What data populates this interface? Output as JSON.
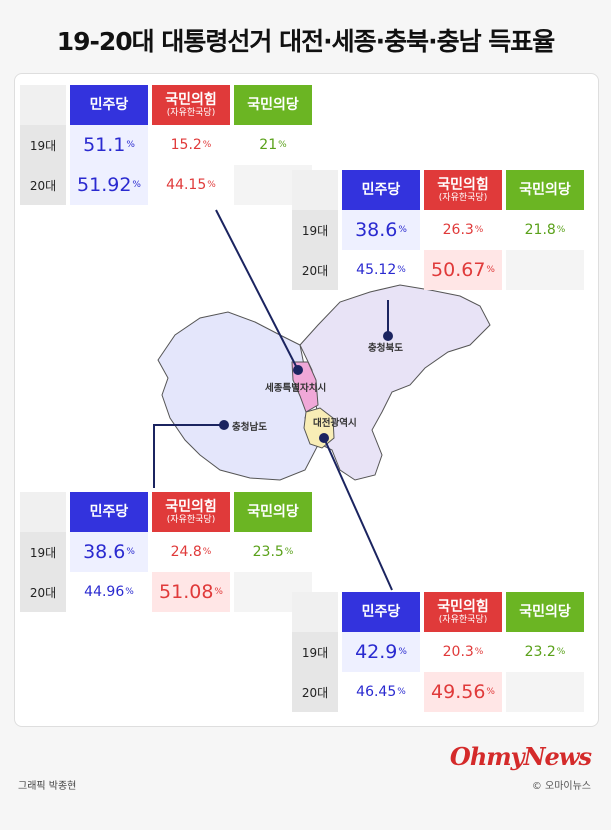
{
  "title": "19-20대 대통령선거 대전·세종·충북·충남 득표율",
  "party_headers": {
    "dem": "민주당",
    "ppp": "국민의힘",
    "ppp_sub": "(자유한국당)",
    "grn": "국민의당"
  },
  "regions": {
    "chungbuk": "충청북도",
    "sejong": "세종특별자치시",
    "chungnam": "충청남도",
    "daejeon": "대전광역시"
  },
  "colors": {
    "dem": "#3333dd",
    "ppp": "#e03a3a",
    "grn": "#6bb523"
  },
  "chart_data": {
    "type": "table",
    "columns": [
      "민주당",
      "국민의힘(자유한국당)",
      "국민의당"
    ],
    "rows": [
      "19대",
      "20대"
    ],
    "unit": "%",
    "tables": [
      {
        "region": "세종특별자치시",
        "values": {
          "19대": [
            51.1,
            15.2,
            21
          ],
          "20대": [
            51.92,
            44.15,
            null
          ]
        },
        "display": {
          "19대": [
            "51.1",
            "15.2",
            "21"
          ],
          "20대": [
            "51.92",
            "44.15",
            ""
          ]
        }
      },
      {
        "region": "충청북도",
        "values": {
          "19대": [
            38.6,
            26.3,
            21.8
          ],
          "20대": [
            45.12,
            50.67,
            null
          ]
        },
        "display": {
          "19대": [
            "38.6",
            "26.3",
            "21.8"
          ],
          "20대": [
            "45.12",
            "50.67",
            ""
          ]
        }
      },
      {
        "region": "충청남도",
        "values": {
          "19대": [
            38.6,
            24.8,
            23.5
          ],
          "20대": [
            44.96,
            51.08,
            null
          ]
        },
        "display": {
          "19대": [
            "38.6",
            "24.8",
            "23.5"
          ],
          "20대": [
            "44.96",
            "51.08",
            ""
          ]
        }
      },
      {
        "region": "대전광역시",
        "values": {
          "19대": [
            42.9,
            20.3,
            23.2
          ],
          "20대": [
            46.45,
            49.56,
            null
          ]
        },
        "display": {
          "19대": [
            "42.9",
            "20.3",
            "23.2"
          ],
          "20대": [
            "46.45",
            "49.56",
            ""
          ]
        }
      }
    ]
  },
  "footer": {
    "credit": "그래픽 박종현",
    "logo": "OhmyNews",
    "copyright": "© 오마이뉴스"
  }
}
